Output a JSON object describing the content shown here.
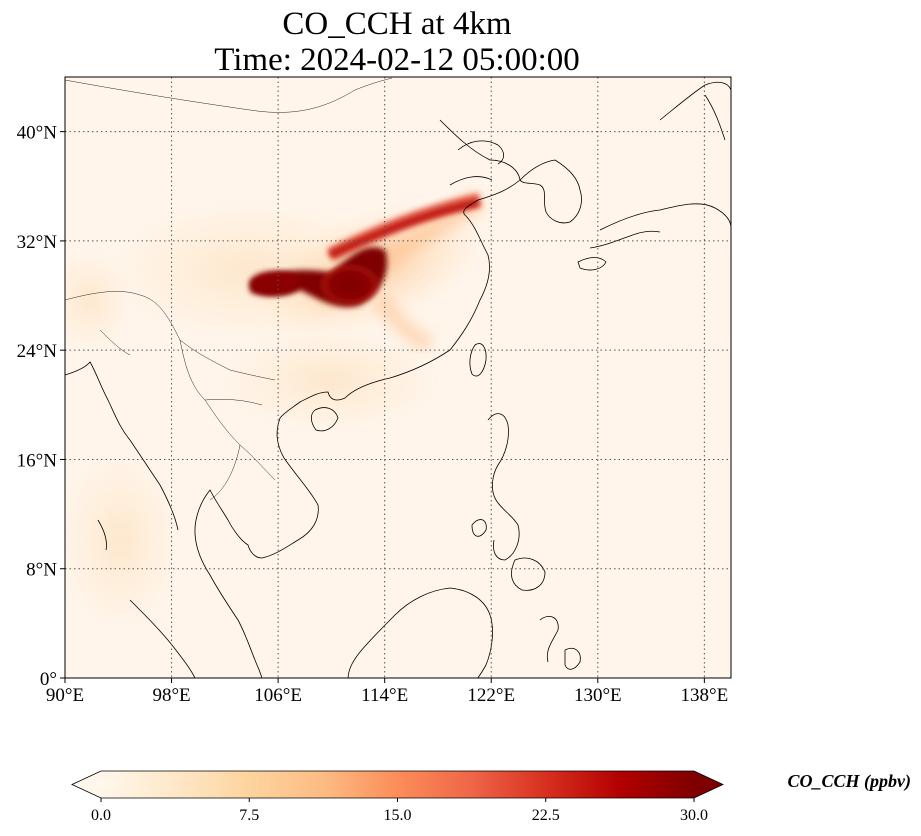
{
  "title": {
    "line1": "CO_CCH at 4km",
    "line2": "Time: 2024-02-12 05:00:00"
  },
  "map": {
    "variable": "CO_CCH",
    "level": "4km",
    "time": "2024-02-12 05:00:00",
    "extent": {
      "lon_min": 90,
      "lon_max": 140,
      "lat_min": 0,
      "lat_max": 44
    },
    "gridlines": true,
    "lon_ticks": [
      {
        "value": 90,
        "label": "90°E"
      },
      {
        "value": 98,
        "label": "98°E"
      },
      {
        "value": 106,
        "label": "106°E"
      },
      {
        "value": 114,
        "label": "114°E"
      },
      {
        "value": 122,
        "label": "122°E"
      },
      {
        "value": 130,
        "label": "130°E"
      },
      {
        "value": 138,
        "label": "138°E"
      }
    ],
    "lat_ticks": [
      {
        "value": 0,
        "label": "0°"
      },
      {
        "value": 8,
        "label": "8°N"
      },
      {
        "value": 16,
        "label": "16°N"
      },
      {
        "value": 24,
        "label": "24°N"
      },
      {
        "value": 32,
        "label": "32°N"
      },
      {
        "value": 40,
        "label": "40°N"
      }
    ],
    "background_color": "#fff5eb",
    "coastline_color": "#000000"
  },
  "colorbar": {
    "label": "CO_CCH (ppbv)",
    "min": 0,
    "max": 30,
    "ticks": [
      {
        "value": 0,
        "label": "0.0"
      },
      {
        "value": 7.5,
        "label": "7.5"
      },
      {
        "value": 15,
        "label": "15.0"
      },
      {
        "value": 22.5,
        "label": "22.5"
      },
      {
        "value": 30,
        "label": "30.0"
      }
    ],
    "colormap": "OrRd",
    "colors": [
      "#fff7ec",
      "#fee8c8",
      "#fdd49e",
      "#fdbb84",
      "#fc8d59",
      "#ef6548",
      "#d7301f",
      "#b30000",
      "#7f0000"
    ],
    "extend": "both"
  }
}
